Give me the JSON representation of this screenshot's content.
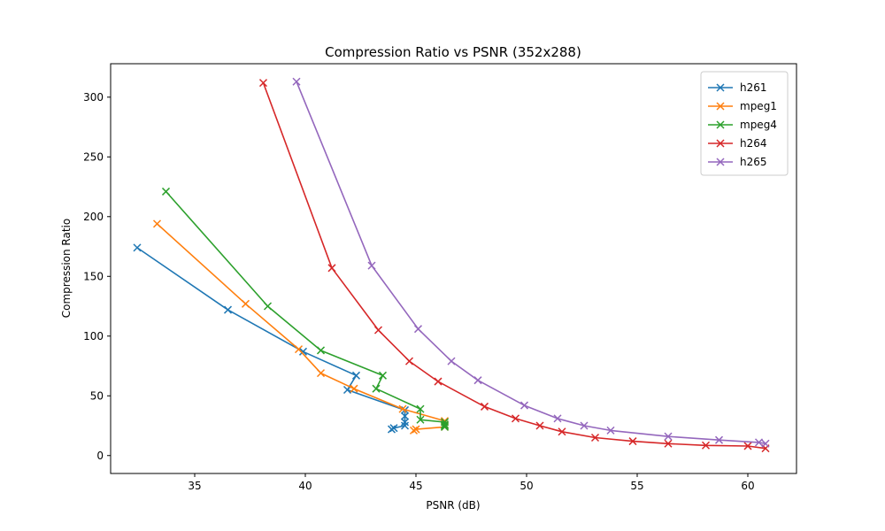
{
  "chart_data": {
    "type": "line",
    "title": "Compression Ratio vs PSNR (352x288)",
    "xlabel": "PSNR (dB)",
    "ylabel": "Compression Ratio",
    "xlim": [
      31.2,
      62.2
    ],
    "ylim": [
      -15,
      328
    ],
    "xticks": [
      35,
      40,
      45,
      50,
      55,
      60
    ],
    "yticks": [
      0,
      50,
      100,
      150,
      200,
      250,
      300
    ],
    "grid": false,
    "legend_position": "top-right",
    "marker": "x",
    "series": [
      {
        "name": "h261",
        "color": "#1f77b4",
        "points": [
          [
            32.4,
            174
          ],
          [
            36.5,
            122
          ],
          [
            39.9,
            87
          ],
          [
            42.3,
            67
          ],
          [
            41.9,
            55
          ],
          [
            44.5,
            38
          ],
          [
            44.5,
            33
          ],
          [
            44.5,
            28
          ],
          [
            44.5,
            25
          ],
          [
            44.0,
            23
          ],
          [
            43.9,
            22
          ]
        ]
      },
      {
        "name": "mpeg1",
        "color": "#ff7f0e",
        "points": [
          [
            33.3,
            194
          ],
          [
            37.3,
            127
          ],
          [
            39.7,
            89
          ],
          [
            40.7,
            69
          ],
          [
            42.2,
            56
          ],
          [
            44.4,
            39
          ],
          [
            46.3,
            29
          ],
          [
            46.3,
            26
          ],
          [
            46.3,
            24
          ],
          [
            45.0,
            22
          ],
          [
            44.9,
            21
          ]
        ]
      },
      {
        "name": "mpeg4",
        "color": "#2ca02c",
        "points": [
          [
            33.7,
            221
          ],
          [
            38.3,
            125
          ],
          [
            40.7,
            88
          ],
          [
            43.5,
            67
          ],
          [
            43.2,
            56
          ],
          [
            45.2,
            39
          ],
          [
            45.2,
            30
          ],
          [
            46.3,
            28
          ],
          [
            46.3,
            26
          ],
          [
            46.3,
            25
          ],
          [
            46.3,
            24
          ]
        ]
      },
      {
        "name": "h264",
        "color": "#d62728",
        "points": [
          [
            38.1,
            312
          ],
          [
            41.2,
            157
          ],
          [
            43.3,
            105
          ],
          [
            44.7,
            79
          ],
          [
            46.0,
            62
          ],
          [
            48.1,
            41
          ],
          [
            49.5,
            31
          ],
          [
            50.6,
            25
          ],
          [
            51.6,
            20
          ],
          [
            53.1,
            15
          ],
          [
            54.8,
            12
          ],
          [
            56.4,
            10
          ],
          [
            58.1,
            8.5
          ],
          [
            60.0,
            8
          ],
          [
            60.8,
            6
          ]
        ]
      },
      {
        "name": "h265",
        "color": "#9467bd",
        "points": [
          [
            39.6,
            313
          ],
          [
            43.0,
            159
          ],
          [
            45.1,
            106
          ],
          [
            46.6,
            79
          ],
          [
            47.8,
            63
          ],
          [
            49.9,
            42
          ],
          [
            51.4,
            31
          ],
          [
            52.6,
            25
          ],
          [
            53.8,
            21
          ],
          [
            56.4,
            16
          ],
          [
            58.7,
            13
          ],
          [
            60.5,
            11
          ],
          [
            60.8,
            10
          ]
        ]
      }
    ]
  }
}
